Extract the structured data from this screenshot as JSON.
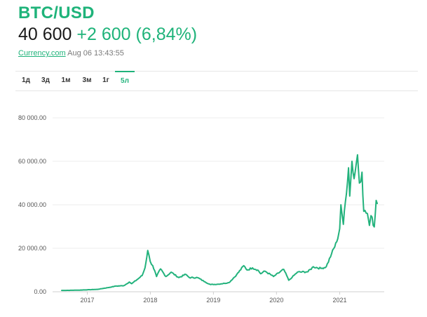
{
  "header": {
    "title": "BTC/USD",
    "price": "40 600",
    "change": "+2 600 (6,84%)",
    "source": "Currency.com",
    "timestamp": "Aug 06 13:43:55"
  },
  "tabs": [
    {
      "label": "1д",
      "active": false
    },
    {
      "label": "3д",
      "active": false
    },
    {
      "label": "1м",
      "active": false
    },
    {
      "label": "3м",
      "active": false
    },
    {
      "label": "1г",
      "active": false
    },
    {
      "label": "5л",
      "active": true
    }
  ],
  "colors": {
    "accent": "#1fb37a",
    "line": "#22b27c"
  },
  "chart_data": {
    "type": "line",
    "x_tick_labels": [
      "2017",
      "2018",
      "2019",
      "2020",
      "2021"
    ],
    "y_tick_labels": [
      "0.00",
      "20 000.00",
      "40 000.00",
      "60 000.00",
      "80 000.00"
    ],
    "ylim": [
      0,
      80000
    ],
    "xlim": [
      "2016-08-06",
      "2021-08-06"
    ],
    "grid": "horizontal",
    "series": [
      {
        "x": [
          "2016-08-06",
          "2016-11-01",
          "2017-01-01",
          "2017-03-01",
          "2017-05-01",
          "2017-06-15",
          "2017-08-01",
          "2017-09-01",
          "2017-09-15",
          "2017-10-15",
          "2017-11-15",
          "2017-12-01",
          "2017-12-17",
          "2017-12-31",
          "2018-01-15",
          "2018-02-06",
          "2018-03-01",
          "2018-04-01",
          "2018-05-01",
          "2018-06-15",
          "2018-07-25",
          "2018-08-15",
          "2018-10-01",
          "2018-11-15",
          "2018-12-15",
          "2019-02-01",
          "2019-04-01",
          "2019-05-15",
          "2019-06-26",
          "2019-07-15",
          "2019-08-15",
          "2019-09-15",
          "2019-10-01",
          "2019-10-26",
          "2019-12-15",
          "2020-02-12",
          "2020-03-12",
          "2020-04-01",
          "2020-05-01",
          "2020-07-01",
          "2020-08-01",
          "2020-09-15",
          "2020-10-15",
          "2020-11-15",
          "2020-12-15",
          "2021-01-01",
          "2021-01-08",
          "2021-01-22",
          "2021-02-21",
          "2021-02-28",
          "2021-03-13",
          "2021-03-25",
          "2021-04-14",
          "2021-04-25",
          "2021-05-10",
          "2021-05-20",
          "2021-06-10",
          "2021-06-22",
          "2021-07-01",
          "2021-07-20",
          "2021-07-31",
          "2021-08-06"
        ],
        "values": [
          600,
          700,
          900,
          1100,
          1900,
          2600,
          2800,
          4500,
          3700,
          5500,
          7500,
          11000,
          19000,
          14000,
          12000,
          7000,
          10500,
          7000,
          9000,
          6500,
          8000,
          6500,
          6500,
          4500,
          3300,
          3500,
          4200,
          7800,
          12000,
          10000,
          11000,
          10000,
          8300,
          9500,
          7000,
          10300,
          5300,
          6700,
          9000,
          9200,
          11500,
          10700,
          11500,
          17500,
          23000,
          29000,
          40000,
          31000,
          57000,
          44000,
          60000,
          52000,
          63000,
          50000,
          55000,
          37000,
          36000,
          30500,
          35000,
          29800,
          42000,
          40600
        ]
      }
    ]
  }
}
